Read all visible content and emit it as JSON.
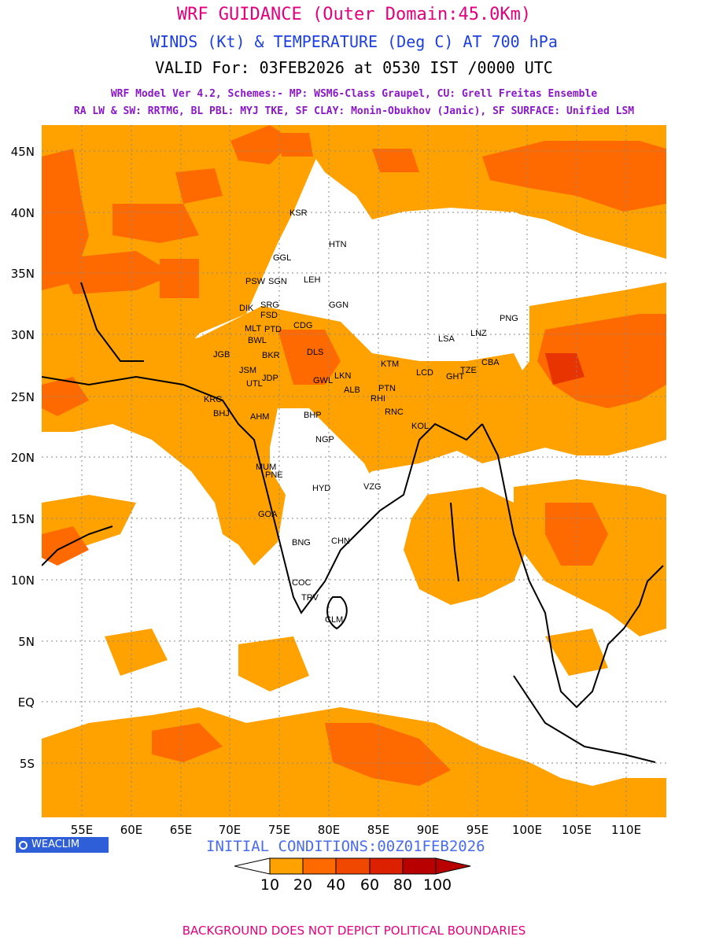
{
  "header": {
    "title": "WRF GUIDANCE (Outer Domain:45.0Km)",
    "subtitle": "WINDS (Kt) & TEMPERATURE (Deg C) AT 700 hPa",
    "valid": "VALID For: 03FEB2026 at 0530 IST /0000 UTC",
    "model_line1": "WRF Model Ver 4.2, Schemes:- MP: WSM6-Class Graupel, CU: Grell Freitas Ensemble",
    "model_line2": "RA LW & SW: RRTMG, BL PBL: MYJ TKE, SF CLAY: Monin-Obukhov (Janic), SF SURFACE: Unified LSM"
  },
  "map": {
    "lat_labels": [
      "45N",
      "40N",
      "35N",
      "30N",
      "25N",
      "20N",
      "15N",
      "10N",
      "5N",
      "EQ",
      "5S"
    ],
    "lon_labels": [
      "55E",
      "60E",
      "65E",
      "70E",
      "75E",
      "80E",
      "85E",
      "90E",
      "95E",
      "100E",
      "105E",
      "110E"
    ],
    "stations": [
      "KSR",
      "HTN",
      "GGL",
      "PSW",
      "SGN",
      "LEH",
      "GGN",
      "DIK",
      "SRG",
      "FSD",
      "MLT",
      "PTD",
      "CDG",
      "BWL",
      "JGB",
      "BKR",
      "DLS",
      "PNG",
      "LSA",
      "LNZ",
      "JSM",
      "KTM",
      "LCD",
      "GHT",
      "TZE",
      "CBA",
      "UTL",
      "JDP",
      "GWL",
      "LKN",
      "ALB",
      "PTN",
      "RHI",
      "KRC",
      "BHJ",
      "AHM",
      "BHP",
      "RNC",
      "KOL",
      "NGP",
      "MUM",
      "PNE",
      "HYD",
      "VZG",
      "GOA",
      "BNG",
      "CHN",
      "COC",
      "TRV",
      "CLM"
    ],
    "colors": {
      "band_10_20": "#ffa200",
      "band_20_40": "#ff6a00",
      "band_40_60": "#e83400"
    }
  },
  "logo": {
    "text": "WEACLIM"
  },
  "initial_conditions": "INITIAL CONDITIONS:00Z01FEB2026",
  "colorbar": {
    "labels": [
      "10",
      "20",
      "40",
      "60",
      "80",
      "100"
    ],
    "colors": [
      "#ffffff",
      "#ffa200",
      "#ff6a00",
      "#f04800",
      "#dc2000",
      "#b80000",
      "#b80000"
    ]
  },
  "footer": "BACKGROUND DOES NOT DEPICT POLITICAL BOUNDARIES"
}
